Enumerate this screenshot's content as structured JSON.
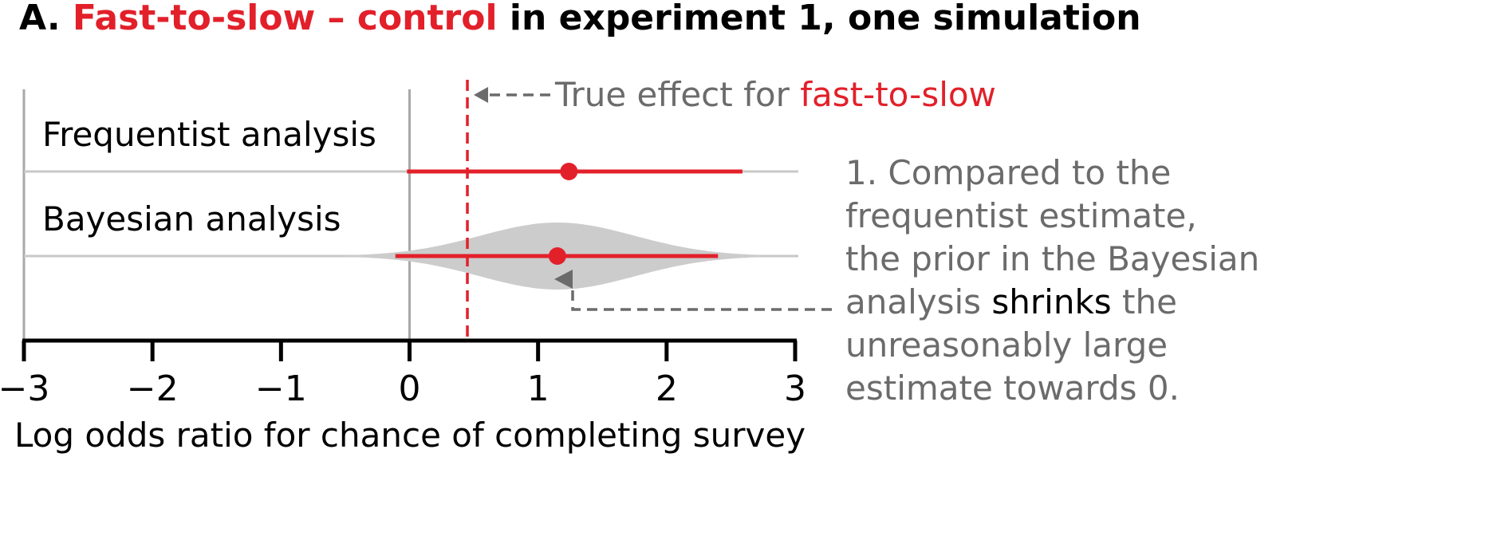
{
  "title": {
    "prefix": "A. ",
    "highlight": "Fast-to-slow – control",
    "suffix": " in experiment 1, one simulation"
  },
  "true_effect_label": {
    "text": "True effect for ",
    "highlight": "fast-to-slow"
  },
  "annotation": {
    "lines": [
      [
        {
          "t": "1. Compared to the",
          "strong": false
        }
      ],
      [
        {
          "t": "frequentist estimate,",
          "strong": false
        }
      ],
      [
        {
          "t": "the prior in the Bayesian",
          "strong": false
        }
      ],
      [
        {
          "t": "analysis ",
          "strong": false
        },
        {
          "t": "shrinks",
          "strong": true
        },
        {
          "t": " the",
          "strong": false
        }
      ],
      [
        {
          "t": "unreasonably large",
          "strong": false
        }
      ],
      [
        {
          "t": "estimate towards 0.",
          "strong": false
        }
      ]
    ]
  },
  "colors": {
    "accent_red": "#e2202a",
    "grey_text": "#6b6b6b",
    "grey_line": "#c8c8c8",
    "density_fill": "#cccccc",
    "axis": "#000000"
  },
  "chart_data": {
    "type": "interval",
    "xlabel": "Log odds ratio for chance of completing survey",
    "xlim": [
      -3,
      3
    ],
    "ticks": [
      -3,
      -2,
      -1,
      0,
      1,
      2,
      3
    ],
    "tick_labels": [
      "−3",
      "−2",
      "−1",
      "0",
      "1",
      "2",
      "3"
    ],
    "reference_lines": [
      -3,
      0
    ],
    "true_effect": 0.45,
    "series": [
      {
        "label": "Frequentist analysis",
        "estimate": 1.24,
        "lower": -0.02,
        "upper": 2.59,
        "has_density": false
      },
      {
        "label": "Bayesian analysis",
        "estimate": 1.15,
        "lower": -0.11,
        "upper": 2.4,
        "has_density": true,
        "density": {
          "center": 1.15,
          "sd": 0.6,
          "min": -0.5,
          "max": 2.72
        }
      }
    ]
  }
}
